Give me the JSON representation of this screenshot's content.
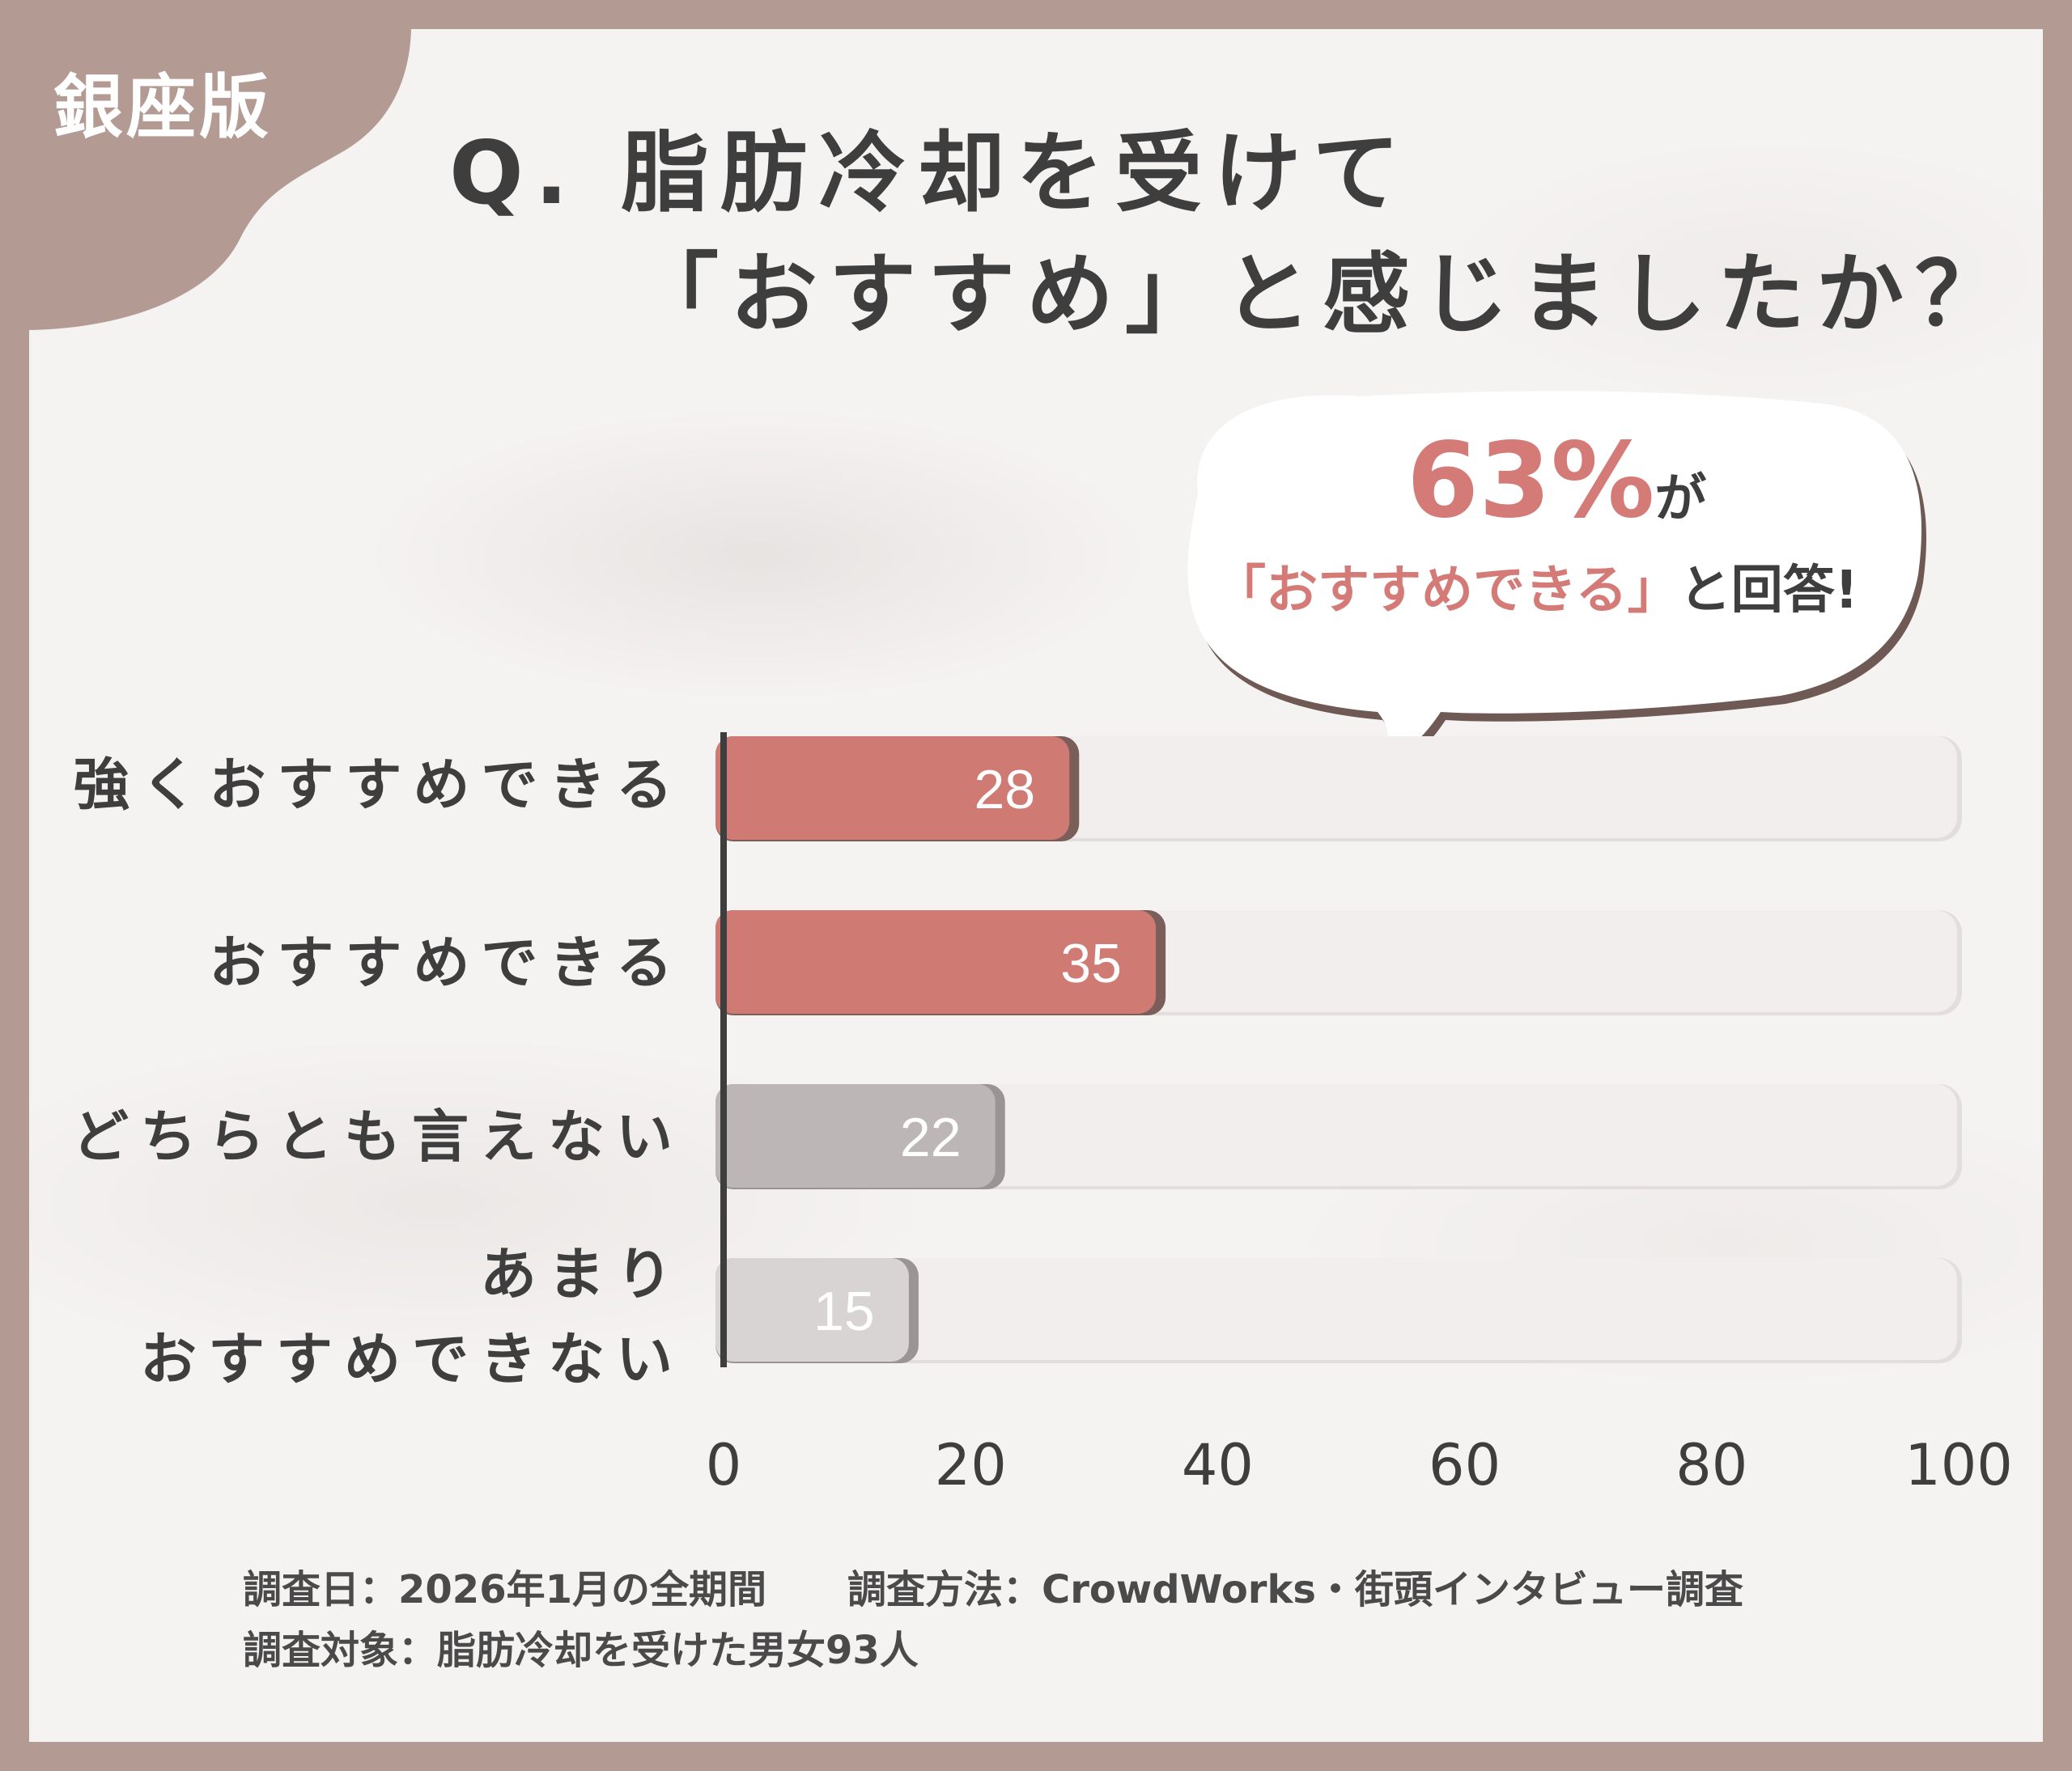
{
  "badge": "銀座版",
  "title": {
    "line1": "Q. 脂肪冷却を受けて",
    "line2": "「おすすめ」と感じましたか？"
  },
  "callout": {
    "percent": "63%",
    "suffix": "が",
    "quote": "「おすすめできる」",
    "tail": "と回答!"
  },
  "chart_data": {
    "type": "bar",
    "orientation": "horizontal",
    "categories": [
      "強くおすすめできる",
      "おすすめできる",
      "どちらとも言えない",
      "あまりおすすめできない"
    ],
    "category_label_lines": [
      [
        "強くおすすめできる"
      ],
      [
        "おすすめできる"
      ],
      [
        "どちらとも言えない"
      ],
      [
        "あまり",
        "おすすめできない"
      ]
    ],
    "values": [
      28,
      35,
      22,
      15
    ],
    "bar_colors": [
      "#d07a74",
      "#d07a74",
      "#bcb7b6",
      "#d8d4d3"
    ],
    "xlim": [
      0,
      100
    ],
    "xticks": [
      0,
      20,
      40,
      60,
      80,
      100
    ],
    "xlabel": "",
    "ylabel": ""
  },
  "footer": {
    "date": "調査日：2026年1月の全期間",
    "method": "調査方法：CrowdWorks・街頭インタビュー調査",
    "target": "調査対象：脂肪冷却を受けた男女93人"
  },
  "colors": {
    "frame": "#b39a92",
    "accent": "#d47a77",
    "text": "#3e3e3e"
  }
}
